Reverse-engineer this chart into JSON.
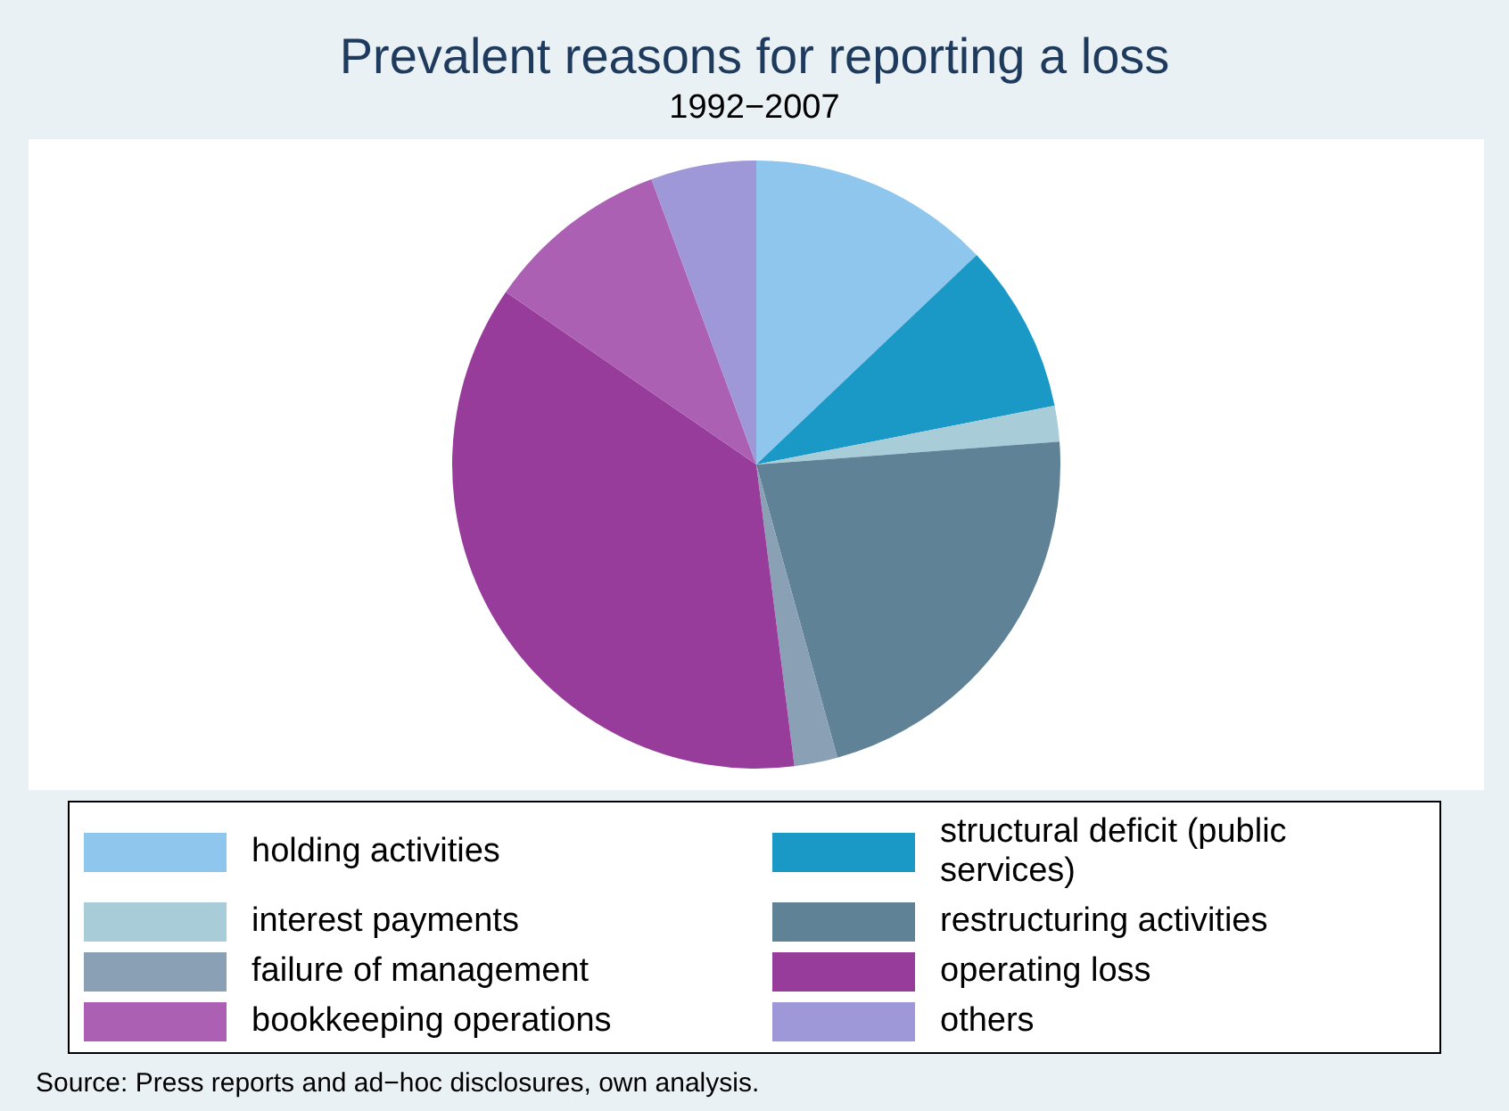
{
  "chart_data": {
    "type": "pie",
    "title": "Prevalent reasons for reporting a loss",
    "subtitle": "1992−2007",
    "categories": [
      "holding activities",
      "structural deficit (public services)",
      "interest payments",
      "restructuring activities",
      "failure of management",
      "operating loss",
      "bookkeeping operations",
      "others"
    ],
    "values": [
      12.9,
      9.0,
      1.9,
      21.9,
      2.3,
      36.6,
      9.8,
      5.6
    ],
    "colors": [
      "#8ec6ee",
      "#1a98c6",
      "#a8ccd8",
      "#5f8296",
      "#8aa0b4",
      "#983c9c",
      "#ac60b4",
      "#9e98d8"
    ],
    "legend": "bottom",
    "annotations": [
      "Source: Press reports and ad−hoc disclosures, own analysis."
    ]
  }
}
